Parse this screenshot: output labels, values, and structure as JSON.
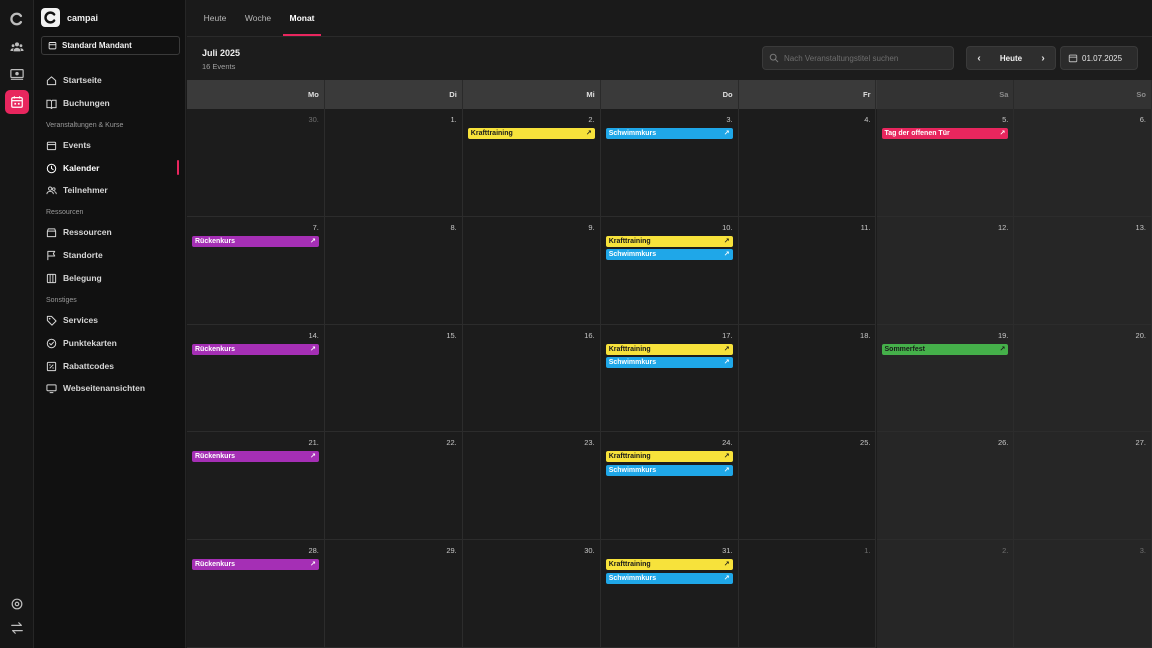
{
  "brand": {
    "name": "campai"
  },
  "tenant": {
    "label": "Standard Mandant"
  },
  "sidebar": {
    "items": [
      {
        "label": "Startseite",
        "icon": "home-icon"
      },
      {
        "label": "Buchungen",
        "icon": "book-icon"
      },
      {
        "label": "Events",
        "icon": "calendar-icon"
      },
      {
        "label": "Kalender",
        "icon": "clock-icon"
      },
      {
        "label": "Teilnehmer",
        "icon": "users-icon"
      },
      {
        "label": "Ressourcen",
        "icon": "box-icon"
      },
      {
        "label": "Standorte",
        "icon": "flag-icon"
      },
      {
        "label": "Belegung",
        "icon": "columns-icon"
      },
      {
        "label": "Services",
        "icon": "tag-icon"
      },
      {
        "label": "Punktekarten",
        "icon": "check-circle-icon"
      },
      {
        "label": "Rabattcodes",
        "icon": "percent-icon"
      },
      {
        "label": "Webseitenansichten",
        "icon": "monitor-icon"
      }
    ],
    "sections": [
      "Veranstaltungen & Kurse",
      "Ressourcen",
      "Sonstiges"
    ]
  },
  "tabs": [
    "Heute",
    "Woche",
    "Monat"
  ],
  "header": {
    "title": "Juli 2025",
    "subtitle": "16 Events",
    "search_placeholder": "Nach Veranstaltungstitel suchen",
    "today_label": "Heute",
    "prev_symbol": "‹",
    "next_symbol": "›",
    "date_value": "01.07.2025"
  },
  "colors": {
    "accent": "#e8265e",
    "yellow": "#f7e23b",
    "blue": "#1fa7e8",
    "purple": "#a52fb5",
    "pink": "#e8265e",
    "green": "#45b04a"
  },
  "weekdays": [
    "Mo",
    "Di",
    "Mi",
    "Do",
    "Fr",
    "Sa",
    "So"
  ],
  "weeks": [
    [
      {
        "day": "30.",
        "muted": true,
        "events": []
      },
      {
        "day": "1.",
        "events": []
      },
      {
        "day": "2.",
        "events": [
          {
            "title": "Krafttraining",
            "color": "yellow"
          }
        ]
      },
      {
        "day": "3.",
        "events": [
          {
            "title": "Schwimmkurs",
            "color": "blue"
          }
        ]
      },
      {
        "day": "4.",
        "events": []
      },
      {
        "day": "5.",
        "events": [
          {
            "title": "Tag der offenen Tür",
            "color": "pink"
          }
        ]
      },
      {
        "day": "6.",
        "events": []
      }
    ],
    [
      {
        "day": "7.",
        "events": [
          {
            "title": "Rückenkurs",
            "color": "purple"
          }
        ]
      },
      {
        "day": "8.",
        "events": []
      },
      {
        "day": "9.",
        "events": []
      },
      {
        "day": "10.",
        "events": [
          {
            "title": "Krafttraining",
            "color": "yellow"
          },
          {
            "title": "Schwimmkurs",
            "color": "blue"
          }
        ]
      },
      {
        "day": "11.",
        "events": []
      },
      {
        "day": "12.",
        "events": []
      },
      {
        "day": "13.",
        "events": []
      }
    ],
    [
      {
        "day": "14.",
        "events": [
          {
            "title": "Rückenkurs",
            "color": "purple"
          }
        ]
      },
      {
        "day": "15.",
        "events": []
      },
      {
        "day": "16.",
        "events": []
      },
      {
        "day": "17.",
        "events": [
          {
            "title": "Krafttraining",
            "color": "yellow"
          },
          {
            "title": "Schwimmkurs",
            "color": "blue"
          }
        ]
      },
      {
        "day": "18.",
        "events": []
      },
      {
        "day": "19.",
        "events": [
          {
            "title": "Sommerfest",
            "color": "green"
          }
        ]
      },
      {
        "day": "20.",
        "events": []
      }
    ],
    [
      {
        "day": "21.",
        "events": [
          {
            "title": "Rückenkurs",
            "color": "purple"
          }
        ]
      },
      {
        "day": "22.",
        "events": []
      },
      {
        "day": "23.",
        "events": []
      },
      {
        "day": "24.",
        "events": [
          {
            "title": "Krafttraining",
            "color": "yellow"
          },
          {
            "title": "Schwimmkurs",
            "color": "blue"
          }
        ]
      },
      {
        "day": "25.",
        "events": []
      },
      {
        "day": "26.",
        "events": []
      },
      {
        "day": "27.",
        "events": []
      }
    ],
    [
      {
        "day": "28.",
        "events": [
          {
            "title": "Rückenkurs",
            "color": "purple"
          }
        ]
      },
      {
        "day": "29.",
        "events": []
      },
      {
        "day": "30.",
        "events": []
      },
      {
        "day": "31.",
        "events": [
          {
            "title": "Krafttraining",
            "color": "yellow"
          },
          {
            "title": "Schwimmkurs",
            "color": "blue"
          }
        ]
      },
      {
        "day": "1.",
        "muted": true,
        "events": []
      },
      {
        "day": "2.",
        "muted": true,
        "events": []
      },
      {
        "day": "3.",
        "muted": true,
        "events": []
      }
    ]
  ]
}
